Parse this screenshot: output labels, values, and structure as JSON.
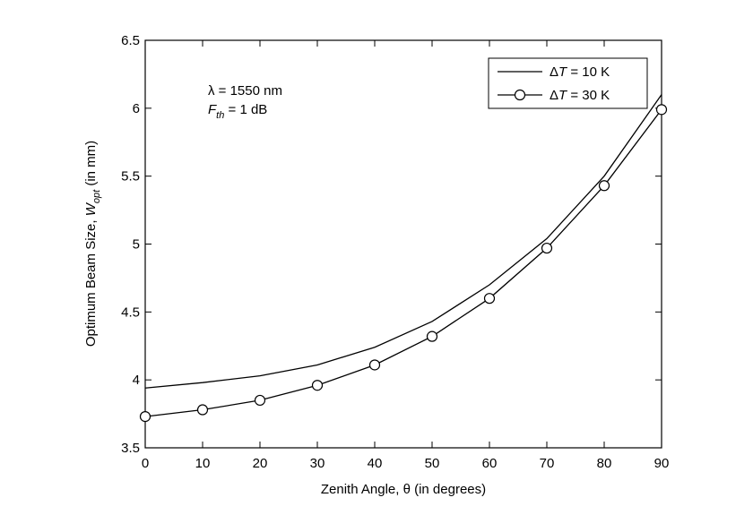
{
  "chart_data": {
    "type": "line",
    "x": [
      0,
      10,
      20,
      30,
      40,
      50,
      60,
      70,
      80,
      90
    ],
    "series": [
      {
        "name": "ΔT = 10 K",
        "marker": "none",
        "values": [
          3.94,
          3.98,
          4.03,
          4.11,
          4.24,
          4.43,
          4.7,
          5.04,
          5.5,
          6.1
        ]
      },
      {
        "name": "ΔT = 30 K",
        "marker": "circle",
        "values": [
          3.73,
          3.78,
          3.85,
          3.96,
          4.11,
          4.32,
          4.6,
          4.97,
          5.43,
          5.99
        ]
      }
    ],
    "xlabel": "Zenith Angle, θ (in degrees)",
    "ylabel": {
      "prefix": "Optimum Beam Size, ",
      "var": "W",
      "sub": "opt",
      "suffix": " (in mm)"
    },
    "xlim": [
      0,
      90
    ],
    "ylim": [
      3.5,
      6.5
    ],
    "xticks": [
      "0",
      "10",
      "20",
      "30",
      "40",
      "50",
      "60",
      "70",
      "80",
      "90"
    ],
    "yticks": [
      "3.5",
      "4",
      "4.5",
      "5",
      "5.5",
      "6",
      "6.5"
    ],
    "grid": false,
    "legend_position": "top-right",
    "legend": {
      "entries": [
        {
          "delta": "Δ",
          "var": "T",
          "rest": " = 10 K"
        },
        {
          "delta": "Δ",
          "var": "T",
          "rest": " = 30 K"
        }
      ]
    },
    "annotations": {
      "lambda": "λ = 1550 nm",
      "fth_var": "F",
      "fth_sub": "th",
      "fth_rest": " =  1 dB"
    },
    "colors": {
      "line": "#000000",
      "background": "#ffffff"
    }
  }
}
